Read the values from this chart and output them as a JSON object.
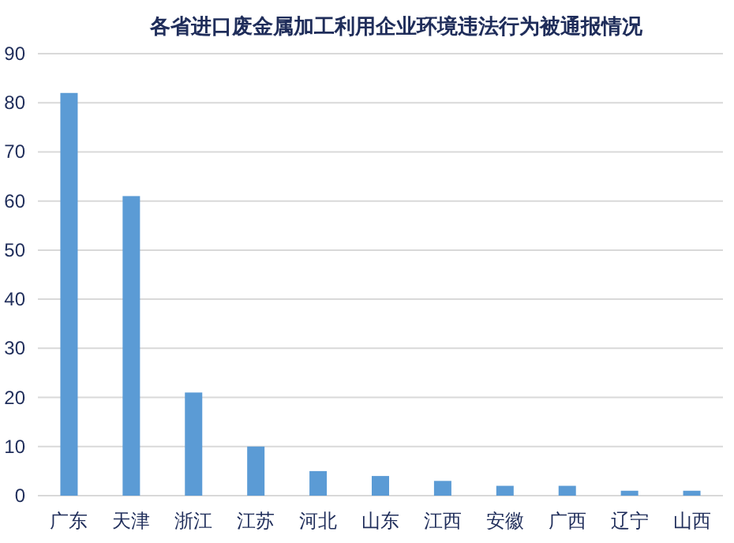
{
  "chart_data": {
    "type": "bar",
    "title": "各省进口废金属加工利用企业环境违法行为被通报情况",
    "categories": [
      "广东",
      "天津",
      "浙江",
      "江苏",
      "河北",
      "山东",
      "江西",
      "安徽",
      "广西",
      "辽宁",
      "山西"
    ],
    "values": [
      82,
      61,
      21,
      10,
      5,
      4,
      3,
      2,
      2,
      1,
      1
    ],
    "color": "#5b9bd5",
    "ylim": [
      0,
      90
    ],
    "yticks": [
      0,
      10,
      20,
      30,
      40,
      50,
      60,
      70,
      80,
      90
    ],
    "grid": "y"
  }
}
